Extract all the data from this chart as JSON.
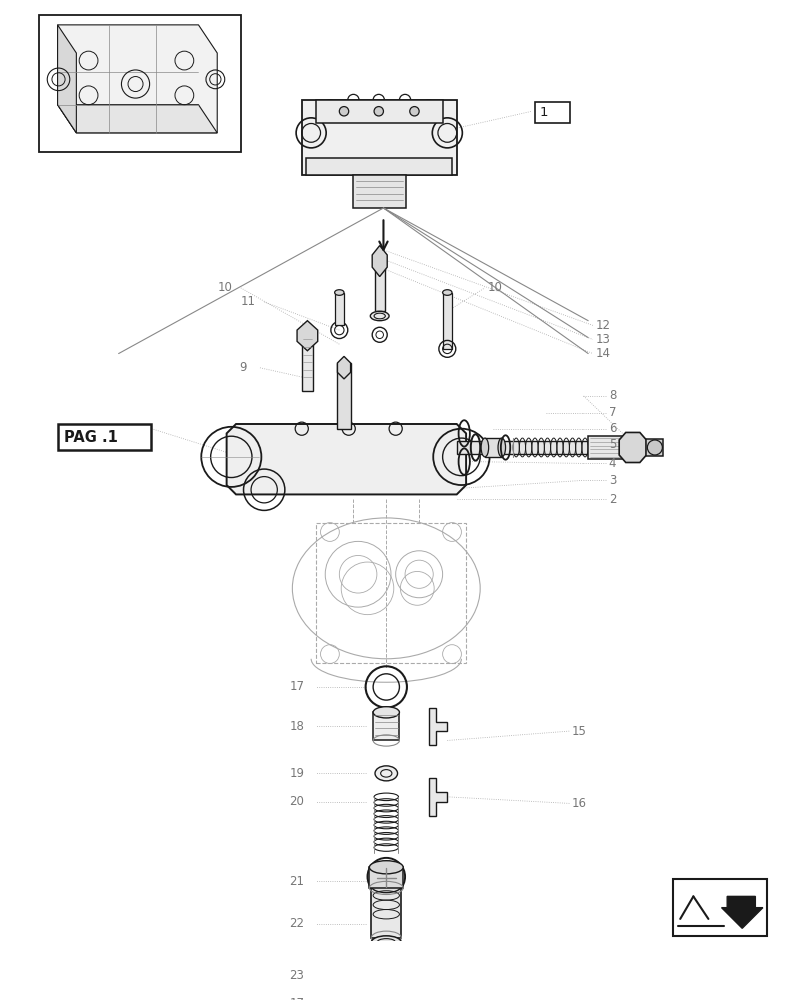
{
  "bg_color": "#ffffff",
  "lc": "#1a1a1a",
  "gc": "#888888",
  "dc": "#aaaaaa",
  "lbl_color": "#777777",
  "lbl_fs": 8.5,
  "fig_w": 8.12,
  "fig_h": 10.0,
  "dpi": 100
}
